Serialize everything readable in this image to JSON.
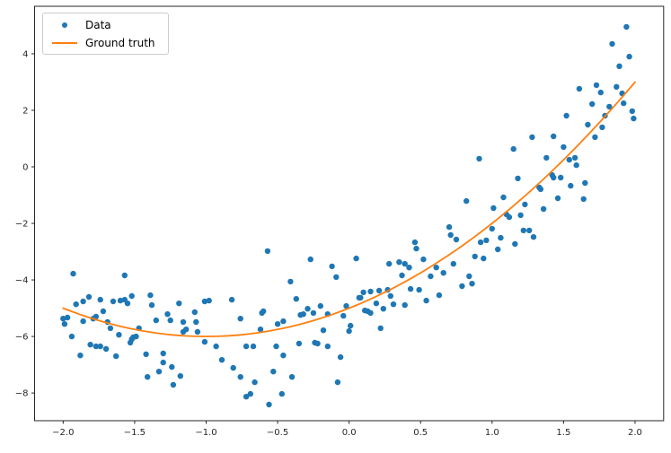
{
  "figure": {
    "background": "#ffffff",
    "legend": {
      "items": [
        {
          "label": "Data",
          "marker": "dot",
          "color": "#1f77b4"
        },
        {
          "label": "Ground truth",
          "marker": "line",
          "color": "#ff7f0e"
        }
      ]
    }
  },
  "chart_data": {
    "type": "scatter",
    "title": "",
    "xlabel": "",
    "ylabel": "",
    "grid": false,
    "legend_position": "upper left",
    "xlim": [
      -2.2,
      2.2
    ],
    "ylim": [
      -8.98,
      5.68
    ],
    "x_axis": {
      "tick_values": [
        -2.0,
        -1.5,
        -1.0,
        -0.5,
        0.0,
        0.5,
        1.0,
        1.5,
        2.0
      ],
      "tick_labels": [
        "−2.0",
        "−1.5",
        "−1.0",
        "−0.5",
        "0.0",
        "0.5",
        "1.0",
        "1.5",
        "2.0"
      ]
    },
    "y_axis": {
      "tick_values": [
        -8,
        -6,
        -4,
        -2,
        0,
        2,
        4
      ],
      "tick_labels": [
        "−8",
        "−6",
        "−4",
        "−2",
        "0",
        "2",
        "4"
      ]
    },
    "series": [
      {
        "name": "Data",
        "type": "scatter",
        "color": "#1f77b4",
        "marker_radius": 3.2,
        "points": [
          [
            1.94,
            4.95
          ],
          [
            1.84,
            4.35
          ],
          [
            1.96,
            3.9
          ],
          [
            1.89,
            3.56
          ],
          [
            1.61,
            2.76
          ],
          [
            1.73,
            2.89
          ],
          [
            1.76,
            2.63
          ],
          [
            1.87,
            2.83
          ],
          [
            1.91,
            2.6
          ],
          [
            1.7,
            2.22
          ],
          [
            1.82,
            2.13
          ],
          [
            1.92,
            2.25
          ],
          [
            1.98,
            1.97
          ],
          [
            1.52,
            1.81
          ],
          [
            1.79,
            1.81
          ],
          [
            1.99,
            1.71
          ],
          [
            1.67,
            1.49
          ],
          [
            1.77,
            1.4
          ],
          [
            1.28,
            1.05
          ],
          [
            1.43,
            1.08
          ],
          [
            1.72,
            1.05
          ],
          [
            0.91,
            0.29
          ],
          [
            1.15,
            0.63
          ],
          [
            1.5,
            0.7
          ],
          [
            1.38,
            0.32
          ],
          [
            1.54,
            0.25
          ],
          [
            1.58,
            0.32
          ],
          [
            1.59,
            0.06
          ],
          [
            1.18,
            -0.41
          ],
          [
            1.42,
            -0.29
          ],
          [
            1.43,
            -0.38
          ],
          [
            1.48,
            -0.38
          ],
          [
            1.65,
            -0.57
          ],
          [
            1.55,
            -0.67
          ],
          [
            1.33,
            -0.73
          ],
          [
            1.34,
            -0.79
          ],
          [
            0.82,
            -1.21
          ],
          [
            1.08,
            -1.08
          ],
          [
            1.64,
            -1.14
          ],
          [
            1.46,
            -1.11
          ],
          [
            1.01,
            -1.46
          ],
          [
            1.23,
            -1.33
          ],
          [
            1.36,
            -1.49
          ],
          [
            1.1,
            -1.68
          ],
          [
            1.12,
            -1.78
          ],
          [
            1.2,
            -1.71
          ],
          [
            1.0,
            -2.19
          ],
          [
            1.22,
            -2.25
          ],
          [
            1.26,
            -2.25
          ],
          [
            1.29,
            -2.48
          ],
          [
            0.92,
            -2.67
          ],
          [
            0.96,
            -2.6
          ],
          [
            1.06,
            -2.51
          ],
          [
            1.16,
            -2.73
          ],
          [
            1.04,
            -2.92
          ],
          [
            0.88,
            -3.17
          ],
          [
            0.94,
            -3.24
          ],
          [
            0.75,
            -2.57
          ],
          [
            0.84,
            -3.87
          ],
          [
            0.79,
            -4.22
          ],
          [
            0.86,
            -4.13
          ],
          [
            -1.93,
            -3.78
          ],
          [
            -1.57,
            -3.84
          ],
          [
            -0.57,
            -2.98
          ],
          [
            -0.27,
            -3.27
          ],
          [
            -0.12,
            -3.52
          ],
          [
            -0.09,
            -3.9
          ],
          [
            -0.41,
            -4.06
          ],
          [
            0.05,
            -3.24
          ],
          [
            0.28,
            -3.43
          ],
          [
            0.35,
            -3.37
          ],
          [
            0.39,
            -3.43
          ],
          [
            0.37,
            -3.84
          ],
          [
            0.42,
            -3.56
          ],
          [
            0.46,
            -2.67
          ],
          [
            0.47,
            -2.89
          ],
          [
            0.52,
            -3.27
          ],
          [
            0.57,
            -3.87
          ],
          [
            0.61,
            -3.56
          ],
          [
            0.66,
            -3.75
          ],
          [
            0.7,
            -2.13
          ],
          [
            0.71,
            -2.41
          ],
          [
            0.73,
            -3.43
          ],
          [
            -1.91,
            -4.86
          ],
          [
            -1.86,
            -4.76
          ],
          [
            -1.82,
            -4.6
          ],
          [
            -1.74,
            -4.7
          ],
          [
            -1.72,
            -5.11
          ],
          [
            -1.77,
            -5.3
          ],
          [
            -1.65,
            -4.76
          ],
          [
            -1.6,
            -4.73
          ],
          [
            -1.57,
            -4.7
          ],
          [
            -1.52,
            -4.57
          ],
          [
            -1.55,
            -4.83
          ],
          [
            -1.39,
            -4.54
          ],
          [
            -1.38,
            -4.89
          ],
          [
            -2.0,
            -5.37
          ],
          [
            -1.97,
            -5.33
          ],
          [
            -1.99,
            -5.56
          ],
          [
            -1.86,
            -5.46
          ],
          [
            -1.79,
            -5.37
          ],
          [
            -1.69,
            -5.49
          ],
          [
            -1.67,
            -5.71
          ],
          [
            -1.35,
            -5.43
          ],
          [
            -1.27,
            -5.21
          ],
          [
            -1.25,
            -5.43
          ],
          [
            -1.19,
            -4.83
          ],
          [
            -1.16,
            -5.49
          ],
          [
            -1.08,
            -5.14
          ],
          [
            -1.07,
            -5.49
          ],
          [
            -1.01,
            -4.76
          ],
          [
            -0.98,
            -4.73
          ],
          [
            -1.94,
            -6.0
          ],
          [
            -1.88,
            -6.67
          ],
          [
            -1.81,
            -6.29
          ],
          [
            -1.77,
            -6.35
          ],
          [
            -1.74,
            -6.35
          ],
          [
            -1.7,
            -6.44
          ],
          [
            -1.63,
            -6.7
          ],
          [
            -1.61,
            -5.94
          ],
          [
            -1.52,
            -6.1
          ],
          [
            -1.51,
            -6.03
          ],
          [
            -1.49,
            -6.0
          ],
          [
            -1.53,
            -6.22
          ],
          [
            -1.47,
            -5.71
          ],
          [
            -1.42,
            -6.63
          ],
          [
            -1.3,
            -6.6
          ],
          [
            -1.3,
            -6.92
          ],
          [
            -1.41,
            -7.43
          ],
          [
            -1.33,
            -7.24
          ],
          [
            -1.24,
            -7.08
          ],
          [
            -1.23,
            -7.71
          ],
          [
            -1.18,
            -7.4
          ],
          [
            -1.16,
            -5.84
          ],
          [
            -1.14,
            -5.75
          ],
          [
            -1.06,
            -5.84
          ],
          [
            -1.01,
            -6.19
          ],
          [
            -0.93,
            -6.35
          ],
          [
            -0.89,
            -6.83
          ],
          [
            -0.81,
            -7.11
          ],
          [
            -0.82,
            -4.7
          ],
          [
            -0.76,
            -5.37
          ],
          [
            -0.76,
            -7.43
          ],
          [
            -0.37,
            -4.67
          ],
          [
            -0.6,
            -5.11
          ],
          [
            -0.61,
            -5.17
          ],
          [
            -0.62,
            -5.75
          ],
          [
            -0.5,
            -5.56
          ],
          [
            -0.46,
            -5.46
          ],
          [
            -0.32,
            -5.21
          ],
          [
            -0.34,
            -5.24
          ],
          [
            -0.29,
            -5.02
          ],
          [
            -0.25,
            -5.17
          ],
          [
            -0.2,
            -4.92
          ],
          [
            -0.15,
            -5.21
          ],
          [
            -0.04,
            -5.27
          ],
          [
            -0.02,
            -4.92
          ],
          [
            0.1,
            -4.44
          ],
          [
            0.07,
            -4.63
          ],
          [
            0.08,
            -4.63
          ],
          [
            0.15,
            -4.41
          ],
          [
            0.21,
            -4.38
          ],
          [
            0.27,
            -4.35
          ],
          [
            0.19,
            -4.83
          ],
          [
            0.11,
            -5.08
          ],
          [
            0.13,
            -5.11
          ],
          [
            0.15,
            -5.17
          ],
          [
            0.24,
            -5.02
          ],
          [
            0.29,
            -4.57
          ],
          [
            0.31,
            -4.86
          ],
          [
            0.39,
            -4.89
          ],
          [
            0.43,
            -4.32
          ],
          [
            0.49,
            -4.35
          ],
          [
            0.54,
            -4.73
          ],
          [
            0.63,
            -4.54
          ],
          [
            0.01,
            -5.62
          ],
          [
            0.0,
            -5.81
          ],
          [
            0.22,
            -5.71
          ],
          [
            -0.18,
            -5.78
          ],
          [
            -0.72,
            -6.35
          ],
          [
            -0.67,
            -6.35
          ],
          [
            -0.51,
            -6.35
          ],
          [
            -0.46,
            -6.67
          ],
          [
            -0.35,
            -6.25
          ],
          [
            -0.24,
            -6.22
          ],
          [
            -0.22,
            -6.25
          ],
          [
            -0.15,
            -6.35
          ],
          [
            -0.06,
            -6.73
          ],
          [
            -0.66,
            -7.62
          ],
          [
            -0.53,
            -7.24
          ],
          [
            -0.47,
            -8.03
          ],
          [
            -0.4,
            -7.43
          ],
          [
            -0.56,
            -8.41
          ],
          [
            -0.72,
            -8.13
          ],
          [
            -0.69,
            -8.03
          ],
          [
            -0.08,
            -7.62
          ]
        ]
      },
      {
        "name": "Ground truth",
        "type": "line",
        "color": "#ff7f0e",
        "line_width": 1.8,
        "curve": "quadratic",
        "coefficients": {
          "a": 1,
          "b": 2,
          "c": -5
        },
        "x_range": [
          -2.0,
          2.0
        ]
      }
    ]
  }
}
